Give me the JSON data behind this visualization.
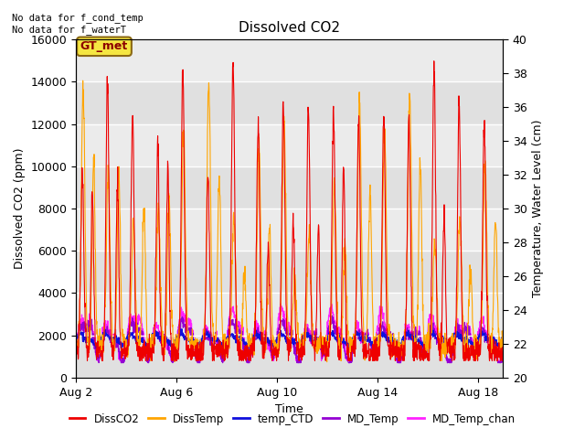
{
  "title": "Dissolved CO2",
  "xlabel": "Time",
  "ylabel_left": "Dissolved CO2 (ppm)",
  "ylabel_right": "Temperature, Water Level (cm)",
  "ylim_left": [
    0,
    16000
  ],
  "ylim_right": [
    20,
    40
  ],
  "xlim": [
    0,
    17
  ],
  "xtick_positions": [
    0,
    4,
    8,
    12,
    16
  ],
  "xtick_labels": [
    "Aug 2",
    "Aug 6",
    "Aug 10",
    "Aug 14",
    "Aug 18"
  ],
  "yticks_left": [
    0,
    2000,
    4000,
    6000,
    8000,
    10000,
    12000,
    14000,
    16000
  ],
  "yticks_right": [
    20,
    22,
    24,
    26,
    28,
    30,
    32,
    34,
    36,
    38,
    40
  ],
  "annotation_text": "No data for f_cond_temp\nNo data for f_waterT",
  "legend_box_label": "GT_met",
  "legend_entries": [
    "DissCO2",
    "DissTemp",
    "temp_CTD",
    "MD_Temp",
    "MD_Temp_chan"
  ],
  "colors": {
    "DissCO2": "#EE0000",
    "DissTemp": "#FFA500",
    "temp_CTD": "#1010DD",
    "MD_Temp": "#9400D3",
    "MD_Temp_chan": "#FF22FF"
  },
  "plot_bg_color": "#E8E8E8",
  "band1_color": "#DCDCDC",
  "band2_color": "#C8C8C8"
}
